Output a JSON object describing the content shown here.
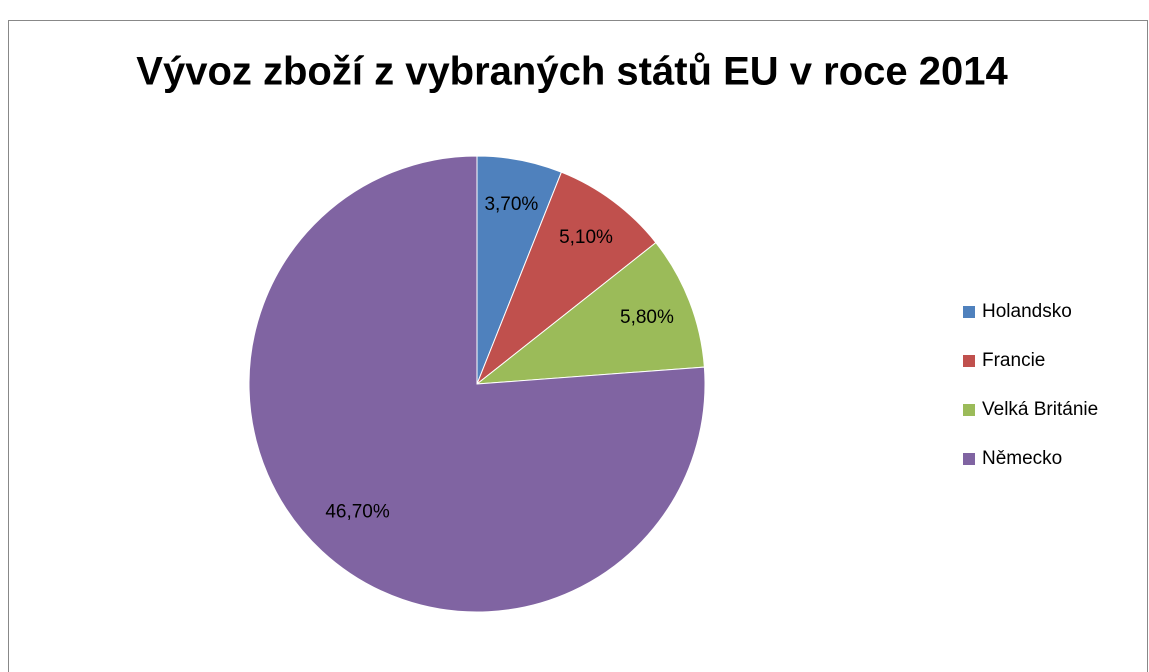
{
  "chart_data": {
    "type": "pie",
    "title": "Vývoz zboží z vybraných států EU v roce 2014",
    "categories": [
      "Holandsko",
      "Francie",
      "Velká Británie",
      "Německo"
    ],
    "values": [
      3.7,
      5.1,
      5.8,
      46.7
    ],
    "value_labels": [
      "3,70%",
      "5,10%",
      "5,80%",
      "46,70%"
    ],
    "colors": [
      "#4f81bd",
      "#c0504d",
      "#9bbb59",
      "#8064a2"
    ],
    "legend": "right"
  }
}
